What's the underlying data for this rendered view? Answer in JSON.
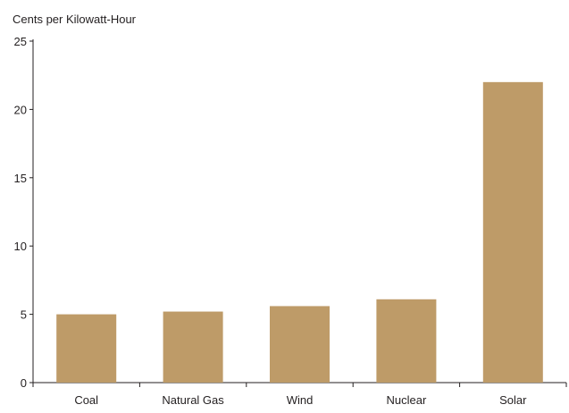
{
  "chart_data": {
    "type": "bar",
    "title": "",
    "xlabel": "",
    "ylabel": "Cents per Kilowatt-Hour",
    "categories": [
      "Coal",
      "Natural Gas",
      "Wind",
      "Nuclear",
      "Solar"
    ],
    "values": [
      5.0,
      5.2,
      5.6,
      6.1,
      22.0
    ],
    "ylim": [
      0,
      25
    ],
    "yticks": [
      0,
      5,
      10,
      15,
      20,
      25
    ],
    "grid": false,
    "legend": "none",
    "colors": {
      "bar": "#be9b68",
      "axis": "#231f20"
    }
  }
}
